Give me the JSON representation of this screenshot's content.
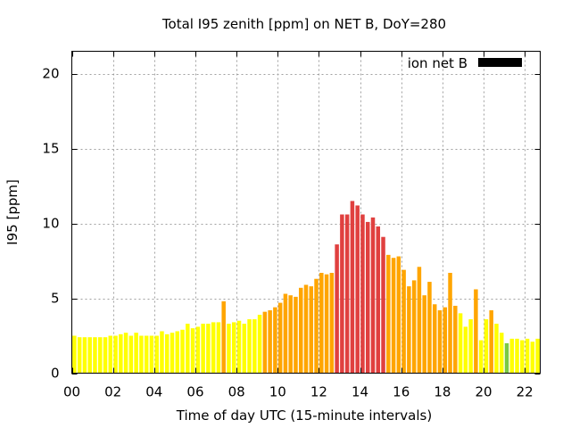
{
  "chart_data": {
    "type": "bar",
    "title": "Total I95 zenith [ppm] on NET B, DoY=280",
    "xlabel": "Time of day UTC (15-minute intervals)",
    "ylabel": "I95 [ppm]",
    "xlim": [
      0,
      22.75
    ],
    "ylim": [
      0,
      21.5
    ],
    "x_ticks": [
      "00",
      "02",
      "04",
      "06",
      "08",
      "10",
      "12",
      "14",
      "16",
      "18",
      "20",
      "22"
    ],
    "y_ticks": [
      "0",
      "5",
      "10",
      "15",
      "20"
    ],
    "grid": true,
    "legend": {
      "position": "top-right",
      "label": "ion net B",
      "color": "#000000"
    },
    "bar_interval_hours": 0.25,
    "color_classes": {
      "yellow": "#ffff00",
      "orange": "#ffa500",
      "red": "#e0403f",
      "green": "#7ac943"
    },
    "values": [
      2.5,
      2.4,
      2.4,
      2.4,
      2.4,
      2.4,
      2.4,
      2.5,
      2.5,
      2.6,
      2.7,
      2.5,
      2.7,
      2.5,
      2.5,
      2.5,
      2.5,
      2.8,
      2.6,
      2.7,
      2.8,
      2.9,
      3.3,
      3.0,
      3.1,
      3.3,
      3.3,
      3.4,
      3.4,
      4.8,
      3.3,
      3.4,
      3.5,
      3.3,
      3.6,
      3.6,
      3.9,
      4.1,
      4.2,
      4.4,
      4.7,
      5.3,
      5.2,
      5.1,
      5.7,
      5.9,
      5.8,
      6.3,
      6.7,
      6.6,
      6.7,
      8.6,
      10.6,
      10.6,
      11.5,
      11.2,
      10.6,
      10.1,
      10.4,
      9.8,
      9.1,
      7.9,
      7.7,
      7.8,
      6.9,
      5.8,
      6.2,
      7.1,
      5.2,
      6.1,
      4.6,
      4.2,
      4.4,
      6.7,
      4.5,
      4.0,
      3.1,
      3.6,
      5.6,
      2.2,
      3.6,
      4.2,
      3.3,
      2.7,
      2.0,
      2.3,
      2.3,
      2.2,
      2.3,
      2.1,
      2.3
    ],
    "colors": [
      "yellow",
      "yellow",
      "yellow",
      "yellow",
      "yellow",
      "yellow",
      "yellow",
      "yellow",
      "yellow",
      "yellow",
      "yellow",
      "yellow",
      "yellow",
      "yellow",
      "yellow",
      "yellow",
      "yellow",
      "yellow",
      "yellow",
      "yellow",
      "yellow",
      "yellow",
      "yellow",
      "yellow",
      "yellow",
      "yellow",
      "yellow",
      "yellow",
      "yellow",
      "orange",
      "yellow",
      "yellow",
      "yellow",
      "yellow",
      "yellow",
      "yellow",
      "yellow",
      "orange",
      "orange",
      "orange",
      "orange",
      "orange",
      "orange",
      "orange",
      "orange",
      "orange",
      "orange",
      "orange",
      "orange",
      "orange",
      "orange",
      "red",
      "red",
      "red",
      "red",
      "red",
      "red",
      "red",
      "red",
      "red",
      "red",
      "orange",
      "orange",
      "orange",
      "orange",
      "orange",
      "orange",
      "orange",
      "orange",
      "orange",
      "orange",
      "orange",
      "orange",
      "orange",
      "orange",
      "yellow",
      "yellow",
      "yellow",
      "orange",
      "yellow",
      "yellow",
      "orange",
      "yellow",
      "yellow",
      "green",
      "yellow",
      "yellow",
      "yellow",
      "yellow",
      "yellow",
      "yellow"
    ]
  }
}
